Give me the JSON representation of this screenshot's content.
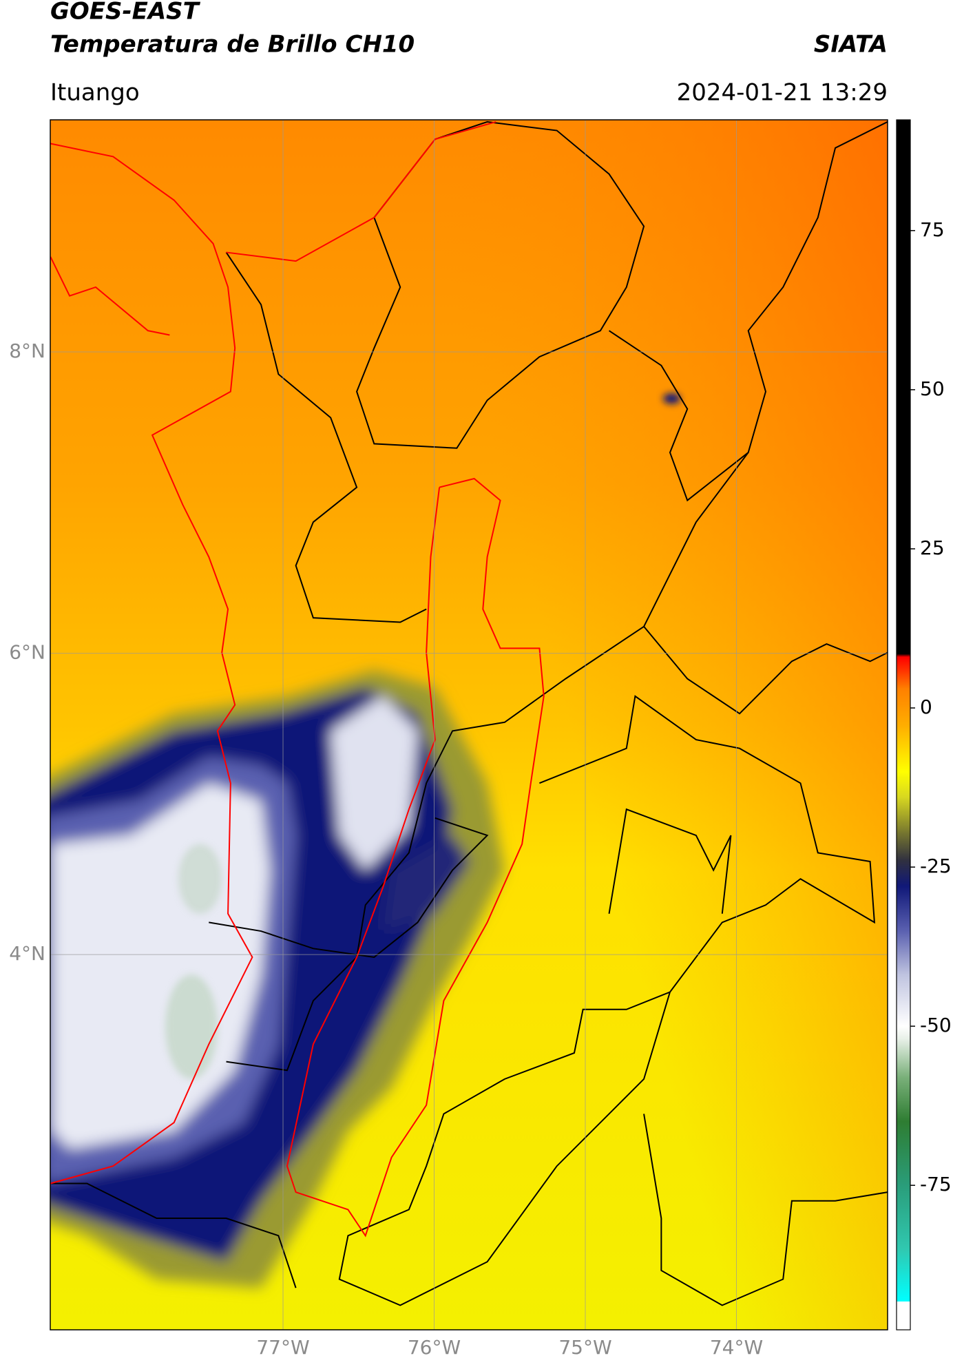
{
  "chart_data": {
    "type": "map",
    "title": "GOES-EAST",
    "subtitle": "Temperatura de Brillo CH10",
    "source": "SIATA",
    "location": "Ituango",
    "datetime": "2024-01-21 13:29",
    "xlim": [
      -78.54,
      -73.0
    ],
    "ylim": [
      1.51,
      9.54
    ],
    "xticks": [
      {
        "value": -77,
        "label": "77°W"
      },
      {
        "value": -76,
        "label": "76°W"
      },
      {
        "value": -75,
        "label": "75°W"
      },
      {
        "value": -74,
        "label": "74°W"
      }
    ],
    "yticks": [
      {
        "value": 4,
        "label": "4°N"
      },
      {
        "value": 6,
        "label": "6°N"
      },
      {
        "value": 8,
        "label": "8°N"
      }
    ],
    "grid": true,
    "colorbar": {
      "lim": [
        -97.7,
        92.4
      ],
      "ticks": [
        -75,
        -50,
        -25,
        0,
        25,
        50,
        75
      ],
      "colormap": [
        {
          "value": -97.7,
          "color": "#ffffff"
        },
        {
          "value": -93.3,
          "color": "#ffffff"
        },
        {
          "value": -93.2,
          "color": "#00ffff"
        },
        {
          "value": -85,
          "color": "#30c8b0"
        },
        {
          "value": -75,
          "color": "#2a9d7a"
        },
        {
          "value": -65,
          "color": "#2e7d32"
        },
        {
          "value": -58,
          "color": "#7ab07a"
        },
        {
          "value": -52,
          "color": "#e8f0e8"
        },
        {
          "value": -50,
          "color": "#ffffff"
        },
        {
          "value": -42,
          "color": "#c0c4e0"
        },
        {
          "value": -35,
          "color": "#5a60b0"
        },
        {
          "value": -28,
          "color": "#101878"
        },
        {
          "value": -24,
          "color": "#303040"
        },
        {
          "value": -20,
          "color": "#707030"
        },
        {
          "value": -14,
          "color": "#d8d820"
        },
        {
          "value": -10,
          "color": "#ffff00"
        },
        {
          "value": -3,
          "color": "#ffb000"
        },
        {
          "value": 3,
          "color": "#ff8000"
        },
        {
          "value": 6,
          "color": "#ff3000"
        },
        {
          "value": 8,
          "color": "#ff0000"
        },
        {
          "value": 8.5,
          "color": "#000000"
        },
        {
          "value": 92.4,
          "color": "#000000"
        }
      ]
    }
  }
}
